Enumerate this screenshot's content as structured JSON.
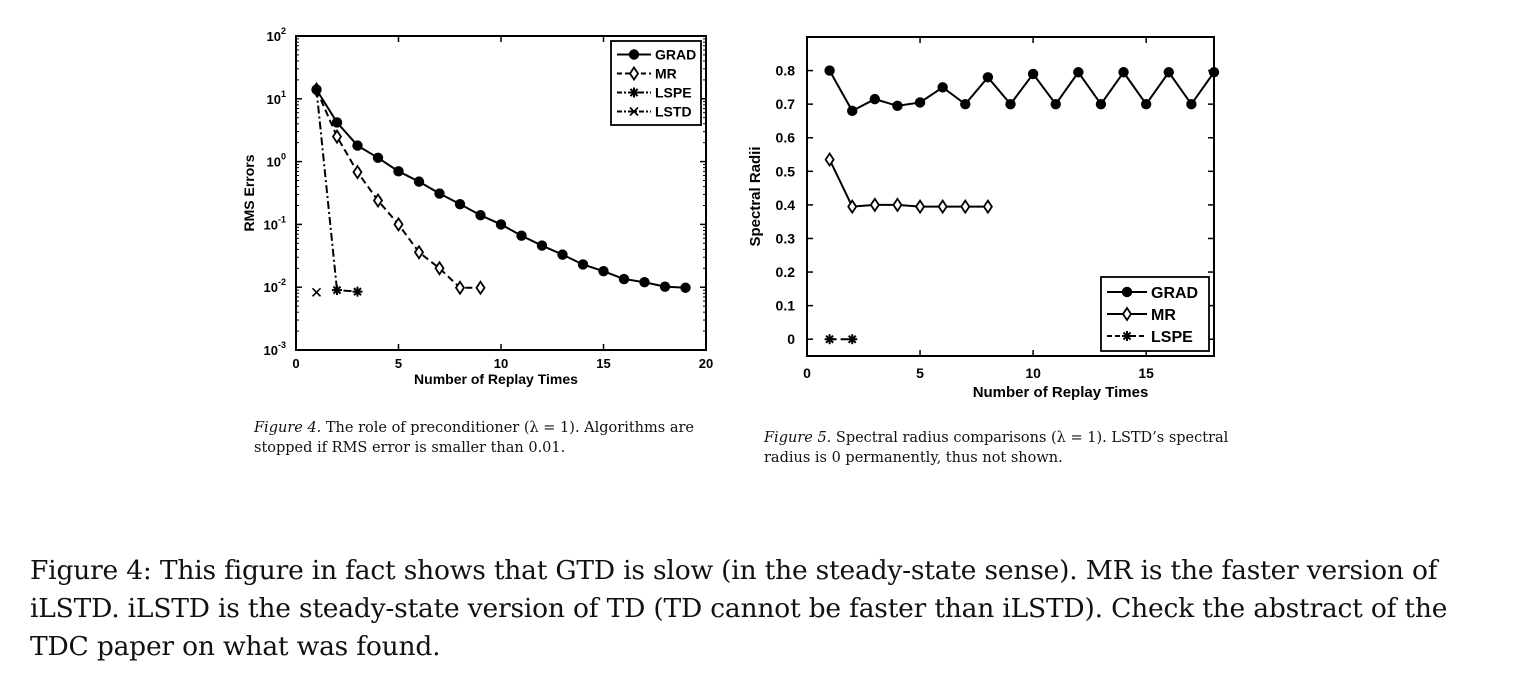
{
  "chart_data": [
    {
      "type": "line",
      "xlabel": "Number of Replay Times",
      "ylabel": "RMS Errors",
      "xlim": [
        0,
        20
      ],
      "ylim": [
        0.001,
        100
      ],
      "yscale": "log",
      "xticks": [
        "0",
        "5",
        "10",
        "15",
        "20"
      ],
      "yticks": [
        {
          "base": "10",
          "exp": "-3"
        },
        {
          "base": "10",
          "exp": "-2"
        },
        {
          "base": "10",
          "exp": "-1"
        },
        {
          "base": "10",
          "exp": "0"
        },
        {
          "base": "10",
          "exp": "1"
        },
        {
          "base": "10",
          "exp": "2"
        }
      ],
      "legend_position": "top-right",
      "grid": false,
      "series": [
        {
          "name": "GRAD",
          "marker": "dot",
          "dash": "solid",
          "x": [
            1,
            2,
            3,
            4,
            5,
            6,
            7,
            8,
            9,
            10,
            11,
            12,
            13,
            14,
            15,
            16,
            17,
            18,
            19
          ],
          "y": [
            14,
            4.2,
            1.8,
            1.15,
            0.7,
            0.48,
            0.31,
            0.21,
            0.14,
            0.1,
            0.066,
            0.046,
            0.033,
            0.023,
            0.018,
            0.0135,
            0.012,
            0.0102,
            0.0098
          ]
        },
        {
          "name": "MR",
          "marker": "diamond",
          "dash": "dashed",
          "x": [
            1,
            2,
            3,
            4,
            5,
            6,
            7,
            8,
            9
          ],
          "y": [
            14,
            2.5,
            0.68,
            0.24,
            0.1,
            0.036,
            0.02,
            0.0098,
            0.0098
          ]
        },
        {
          "name": "LSPE",
          "marker": "asterisk",
          "dash": "dashdot",
          "x": [
            1,
            2,
            3
          ],
          "y": [
            14,
            0.009,
            0.0085
          ]
        },
        {
          "name": "LSTD",
          "marker": "cross",
          "dash": "dashdot",
          "x": [
            1
          ],
          "y": [
            0.0083
          ]
        }
      ],
      "caption_label": "Figure 4.",
      "caption_text": "The role of preconditioner (λ = 1).  Algorithms are stopped if RMS error is smaller than 0.01."
    },
    {
      "type": "line",
      "xlabel": "Number of Replay Times",
      "ylabel": "Spectral Radii",
      "xlim": [
        0,
        18
      ],
      "ylim": [
        -0.05,
        0.9
      ],
      "yscale": "linear",
      "xticks": [
        "0",
        "5",
        "10",
        "15"
      ],
      "yticks": [
        "0",
        "0.1",
        "0.2",
        "0.3",
        "0.4",
        "0.5",
        "0.6",
        "0.7",
        "0.8"
      ],
      "legend_position": "bottom-right",
      "grid": false,
      "series": [
        {
          "name": "GRAD",
          "marker": "dot",
          "dash": "solid",
          "x": [
            1,
            2,
            3,
            4,
            5,
            6,
            7,
            8,
            9,
            10,
            11,
            12,
            13,
            14,
            15,
            16,
            17,
            18
          ],
          "y": [
            0.8,
            0.68,
            0.715,
            0.695,
            0.705,
            0.75,
            0.7,
            0.78,
            0.7,
            0.79,
            0.7,
            0.795,
            0.7,
            0.795,
            0.7,
            0.795,
            0.7,
            0.795
          ]
        },
        {
          "name": "MR",
          "marker": "diamond",
          "dash": "solid",
          "x": [
            1,
            2,
            3,
            4,
            5,
            6,
            7,
            8
          ],
          "y": [
            0.535,
            0.395,
            0.4,
            0.4,
            0.395,
            0.395,
            0.395,
            0.395
          ]
        },
        {
          "name": "LSPE",
          "marker": "asterisk",
          "dash": "dashed",
          "x": [
            1,
            2
          ],
          "y": [
            0,
            0
          ]
        }
      ],
      "caption_label": "Figure 5.",
      "caption_text": "Spectral radius comparisons (λ = 1).  LSTD’s spectral radius is 0 permanently, thus not shown."
    }
  ],
  "main_caption": "Figure 4: This figure in fact shows that GTD is slow (in the steady-state sense). MR is the faster version of iLSTD. iLSTD is the steady-state version of TD (TD cannot be faster than iLSTD). Check the abstract of the TDC paper on what was found."
}
